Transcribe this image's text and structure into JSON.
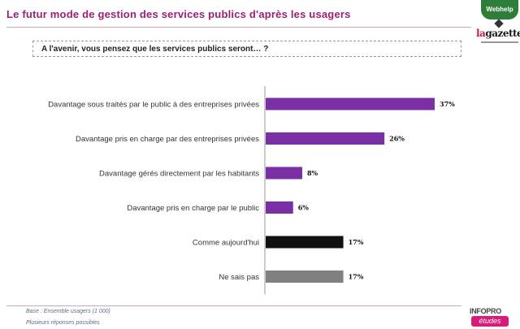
{
  "header": {
    "title": "Le futur mode de gestion des services publics d'après les usagers",
    "question": "A l'avenir, vous pensez que les services publics seront… ?"
  },
  "logos": {
    "webhelp": "Webhelp",
    "gazette_la": "la",
    "gazette_rest": "gazette",
    "infopro_top": "INFOPRO",
    "infopro_bottom": "études"
  },
  "chart_data": {
    "type": "bar",
    "orientation": "horizontal",
    "categories": [
      "Davantage sous traités par le public à des entreprises privées",
      "Davantage pris en charge par des entreprises privées",
      "Davantage gérés directement par les habitants",
      "Davantage pris en charge par le public",
      "Comme aujourd'hui",
      "Ne sais pas"
    ],
    "values": [
      37,
      26,
      8,
      6,
      17,
      17
    ],
    "value_labels": [
      "37%",
      "26%",
      "8%",
      "6%",
      "17%",
      "17%"
    ],
    "colors": [
      "#7a2fa5",
      "#7a2fa5",
      "#7a2fa5",
      "#7a2fa5",
      "#111111",
      "#808080"
    ],
    "xlim": [
      0,
      40
    ],
    "title": "",
    "xlabel": "",
    "ylabel": ""
  },
  "footer": {
    "base": "Base : Ensemble usagers (1 000)",
    "note": "Plusieurs réponses possibles"
  }
}
